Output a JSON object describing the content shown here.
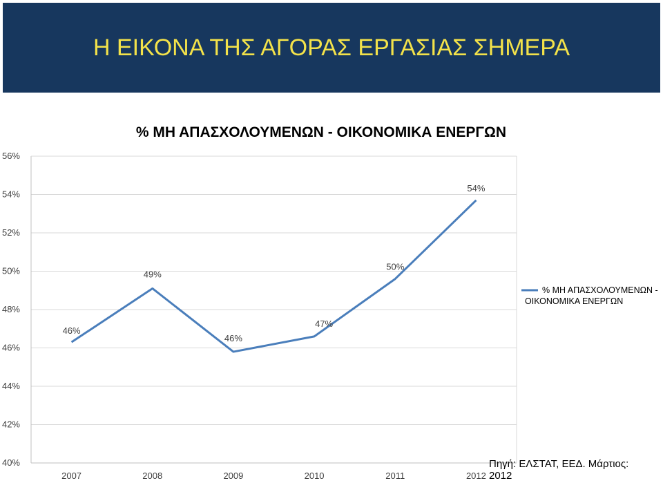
{
  "header": {
    "title": "Η ΕΙΚΟΝΑ ΤΗΣ ΑΓΟΡΑΣ ΕΡΓΑΣΙΑΣ ΣΗΜΕΡΑ",
    "background": "#17375e",
    "title_color": "#f3e24a"
  },
  "source": "Πηγή: ΕΛΣΤΑΤ, ΕΕΔ. Μάρτιος: 2012",
  "chart_data": {
    "type": "line",
    "title": "% ΜΗ ΑΠΑΣΧΟΛΟΥΜΕΝΩΝ - ΟΙΚΟΝΟΜΙΚΑ ΕΝΕΡΓΩΝ",
    "categories": [
      "2007",
      "2008",
      "2009",
      "2010",
      "2011",
      "2012"
    ],
    "series": [
      {
        "name": "% ΜΗ ΑΠΑΣΧΟΛΟΥΜΕΝΩΝ - ΟΙΚΟΝΟΜΙΚΑ ΕΝΕΡΓΩΝ",
        "values": [
          46.3,
          49.1,
          45.8,
          46.6,
          49.6,
          53.7
        ],
        "labels": [
          "46%",
          "49%",
          "46%",
          "47%",
          "50%",
          "54%"
        ],
        "color": "#4a7ebb"
      }
    ],
    "ylim": [
      40,
      56
    ],
    "yticks": [
      40,
      42,
      44,
      46,
      48,
      50,
      52,
      54,
      56
    ],
    "ytick_labels": [
      "40%",
      "42%",
      "44%",
      "46%",
      "48%",
      "50%",
      "52%",
      "54%",
      "56%"
    ],
    "grid": true,
    "legend_position": "right",
    "xlabel": "",
    "ylabel": ""
  }
}
